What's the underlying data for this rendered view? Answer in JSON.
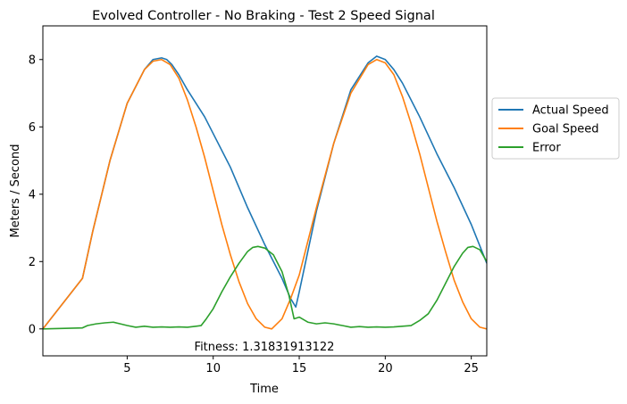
{
  "chart_data": {
    "type": "line",
    "title": "Evolved Controller - No Braking - Test 2  Speed Signal",
    "xlabel": "Time",
    "ylabel": "Meters / Second",
    "xlim": [
      0.1,
      25.9
    ],
    "ylim": [
      -0.8,
      9.0
    ],
    "xticks": [
      5,
      10,
      15,
      20,
      25
    ],
    "yticks": [
      0,
      2,
      4,
      6,
      8
    ],
    "grid": false,
    "legend_position": "outside-right",
    "annotation": "Fitness: 1.31831913122",
    "series": [
      {
        "name": "Actual Speed",
        "color": "#1f77b4",
        "x": [
          0.1,
          2.4,
          3,
          4,
          5,
          6,
          6.5,
          7,
          7.3,
          7.6,
          8,
          8.5,
          9,
          9.5,
          10,
          11,
          12,
          13,
          14,
          14.5,
          14.8,
          15,
          15.5,
          16,
          17,
          18,
          19,
          19.5,
          20,
          20.5,
          21,
          22,
          23,
          24,
          25,
          25.9
        ],
        "y": [
          0.0,
          1.5,
          2.9,
          5.0,
          6.7,
          7.7,
          8.0,
          8.05,
          8.0,
          7.85,
          7.55,
          7.1,
          6.7,
          6.3,
          5.8,
          4.8,
          3.6,
          2.5,
          1.5,
          0.9,
          0.65,
          1.1,
          2.3,
          3.5,
          5.5,
          7.1,
          7.9,
          8.1,
          8.0,
          7.7,
          7.3,
          6.3,
          5.2,
          4.2,
          3.1,
          1.95
        ]
      },
      {
        "name": "Goal Speed",
        "color": "#ff7f0e",
        "x": [
          0.1,
          2.4,
          3,
          4,
          5,
          6,
          6.5,
          7,
          7.5,
          8,
          8.5,
          9,
          9.5,
          10,
          10.5,
          11,
          11.5,
          12,
          12.5,
          13,
          13.4,
          14,
          14.5,
          15,
          15.5,
          16,
          17,
          18,
          19,
          19.5,
          20,
          20.5,
          21,
          21.5,
          22,
          22.5,
          23,
          23.5,
          24,
          24.5,
          25,
          25.5,
          25.9
        ],
        "y": [
          0.0,
          1.5,
          2.9,
          5.0,
          6.7,
          7.7,
          7.95,
          8.0,
          7.85,
          7.45,
          6.8,
          6.0,
          5.1,
          4.1,
          3.1,
          2.2,
          1.4,
          0.75,
          0.3,
          0.05,
          0.0,
          0.3,
          0.9,
          1.6,
          2.6,
          3.6,
          5.5,
          7.0,
          7.85,
          8.0,
          7.9,
          7.55,
          6.9,
          6.1,
          5.2,
          4.2,
          3.2,
          2.3,
          1.45,
          0.8,
          0.3,
          0.05,
          0.0
        ]
      },
      {
        "name": "Error",
        "color": "#2ca02c",
        "x": [
          0.1,
          2.4,
          2.7,
          3.2,
          3.7,
          4.2,
          4.6,
          5,
          5.5,
          6,
          6.5,
          7,
          7.5,
          8,
          8.5,
          9,
          9.3,
          9.6,
          10,
          10.5,
          11,
          11.5,
          12,
          12.3,
          12.6,
          13,
          13.5,
          14,
          14.4,
          14.7,
          15,
          15.5,
          16,
          16.5,
          17,
          17.5,
          18,
          18.5,
          19,
          19.5,
          20,
          20.5,
          21,
          21.5,
          22,
          22.5,
          23,
          23.5,
          24,
          24.5,
          24.8,
          25.1,
          25.5,
          25.9
        ],
        "y": [
          0.0,
          0.03,
          0.1,
          0.15,
          0.18,
          0.2,
          0.15,
          0.1,
          0.05,
          0.08,
          0.05,
          0.06,
          0.05,
          0.06,
          0.05,
          0.08,
          0.1,
          0.3,
          0.6,
          1.1,
          1.55,
          1.95,
          2.3,
          2.42,
          2.45,
          2.4,
          2.2,
          1.7,
          1.0,
          0.3,
          0.35,
          0.2,
          0.15,
          0.18,
          0.15,
          0.1,
          0.05,
          0.07,
          0.05,
          0.06,
          0.05,
          0.06,
          0.08,
          0.1,
          0.25,
          0.45,
          0.85,
          1.35,
          1.85,
          2.25,
          2.42,
          2.45,
          2.35,
          2.0
        ]
      }
    ]
  }
}
